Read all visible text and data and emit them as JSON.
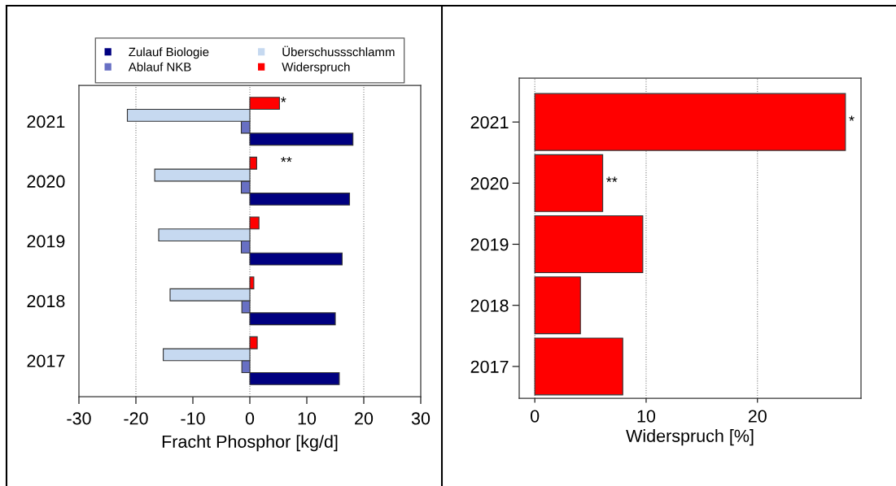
{
  "chart_data": [
    {
      "type": "bar",
      "orientation": "horizontal",
      "categories": [
        "2021",
        "2020",
        "2019",
        "2018",
        "2017"
      ],
      "series": [
        {
          "name": "Zulauf Biologie",
          "color": "#000080",
          "values": [
            18.1,
            17.5,
            16.2,
            15.0,
            15.7
          ]
        },
        {
          "name": "Ablauf NKB",
          "color": "#6870c4",
          "values": [
            -1.5,
            -1.5,
            -1.5,
            -1.4,
            -1.4
          ]
        },
        {
          "name": "Überschussschlamm",
          "color": "#c6d9f0",
          "values": [
            -21.5,
            -16.7,
            -16.0,
            -14.0,
            -15.2
          ]
        },
        {
          "name": "Widerspruch",
          "color": "#ff0000",
          "values": [
            5.2,
            1.2,
            1.6,
            0.7,
            1.3
          ]
        }
      ],
      "xlabel": "Fracht Phosphor [kg/d]",
      "xlim": [
        -30,
        30
      ],
      "xticks": [
        -30,
        -20,
        -10,
        0,
        10,
        20,
        30
      ],
      "ref_lines": [
        {
          "axis": "x",
          "value": -20,
          "color": "#808080",
          "line_style": "dotted"
        },
        {
          "axis": "x",
          "value": 0,
          "color": "#808080",
          "line_style": "dotted"
        },
        {
          "axis": "x",
          "value": 20,
          "color": "#808080",
          "line_style": "dotted"
        }
      ],
      "legend": "top",
      "annotations": [
        "*",
        "**"
      ]
    },
    {
      "type": "bar",
      "orientation": "horizontal",
      "categories": [
        "2021",
        "2020",
        "2019",
        "2018",
        "2017"
      ],
      "values": [
        27.9,
        6.1,
        9.7,
        4.1,
        7.9
      ],
      "color": "#ff0000",
      "xlabel": "Widerspruch [%]",
      "xlim": [
        -1.4,
        29.3
      ],
      "xticks": [
        0,
        10,
        20
      ],
      "grid": "x",
      "annotations": [
        {
          "text": "*",
          "x": 27.9,
          "y": "2021"
        },
        {
          "text": "**",
          "x": 6.1,
          "y": "2020"
        }
      ]
    }
  ]
}
